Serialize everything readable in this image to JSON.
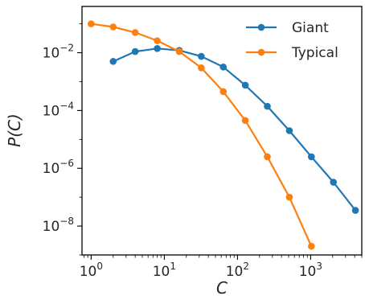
{
  "chart_data": {
    "type": "line",
    "title": "",
    "xlabel": "C",
    "ylabel": "P(C)",
    "xscale": "log",
    "yscale": "log",
    "xlim": [
      0.75,
      5000
    ],
    "ylim": [
      1e-09,
      0.4
    ],
    "xticks": [
      {
        "value": 1,
        "base": "10",
        "exp": "0"
      },
      {
        "value": 10,
        "base": "10",
        "exp": "1"
      },
      {
        "value": 100,
        "base": "10",
        "exp": "2"
      },
      {
        "value": 1000,
        "base": "10",
        "exp": "3"
      }
    ],
    "yticks": [
      {
        "value": 0.01,
        "base": "10",
        "exp": "−2"
      },
      {
        "value": 0.0001,
        "base": "10",
        "exp": "−4"
      },
      {
        "value": 1e-06,
        "base": "10",
        "exp": "−6"
      },
      {
        "value": 1e-08,
        "base": "10",
        "exp": "−8"
      }
    ],
    "grid": false,
    "legend": "top-right",
    "series": [
      {
        "name": "Giant",
        "color": "#1f77b4",
        "marker": "circle",
        "x": [
          2,
          4,
          8,
          16,
          32,
          64,
          128,
          256,
          512,
          1024,
          2048,
          4096
        ],
        "y": [
          0.005,
          0.011,
          0.014,
          0.012,
          0.0075,
          0.0032,
          0.00075,
          0.00014,
          2e-05,
          2.5e-06,
          3.3e-07,
          3.5e-08
        ]
      },
      {
        "name": "Typical",
        "color": "#ff7f0e",
        "marker": "circle",
        "x": [
          1,
          2,
          4,
          8,
          16,
          32,
          64,
          128,
          256,
          512,
          1024
        ],
        "y": [
          0.1,
          0.078,
          0.05,
          0.026,
          0.011,
          0.003,
          0.00045,
          4.5e-05,
          2.5e-06,
          1e-07,
          2e-09
        ]
      }
    ]
  }
}
